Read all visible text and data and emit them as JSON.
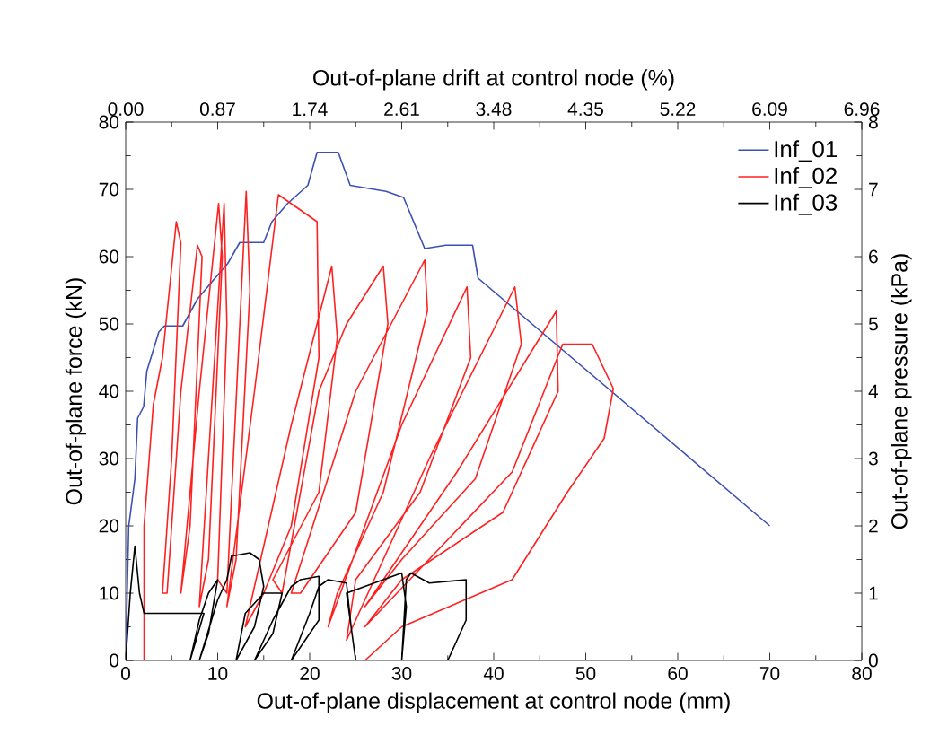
{
  "chart_data": {
    "type": "line",
    "xlabel": "Out-of-plane displacement at control node (mm)",
    "ylabel": "Out-of-plane force (kN)",
    "y2label": "Out-of-plane pressure (kPa)",
    "x2label": "Out-of-plane drift at control node (%)",
    "xlim": [
      0,
      80
    ],
    "xticks": [
      0,
      10,
      20,
      30,
      40,
      50,
      60,
      70,
      80
    ],
    "ylim": [
      0,
      80
    ],
    "yticks": [
      0,
      10,
      20,
      30,
      40,
      50,
      60,
      70,
      80
    ],
    "x2lim": [
      0,
      6.96
    ],
    "x2ticks": [
      {
        "value": 0,
        "label": "0.00"
      },
      0.87,
      1.74,
      2.61,
      3.48,
      4.35,
      5.22,
      6.09,
      6.96
    ],
    "y2lim": [
      0,
      8
    ],
    "y2ticks": [
      0,
      1,
      2,
      3,
      4,
      5,
      6,
      7,
      8
    ],
    "legend": "top right",
    "marker": "none",
    "line_style": "solid",
    "series": [
      {
        "name": "Inf_01",
        "color": "#3c50b4",
        "x": [
          0,
          0.33,
          1.0,
          1.3,
          1.95,
          2.3,
          3.6,
          4.2,
          6.2,
          7.8,
          9.4,
          11.1,
          12.4,
          15,
          15.9,
          17.6,
          19.8,
          20.8,
          23.1,
          24.4,
          28.3,
          30.2,
          32.5,
          34.8,
          37.7,
          38.3,
          70
        ],
        "values": [
          0,
          19.9,
          27,
          36,
          37.7,
          43,
          48.8,
          49.7,
          49.7,
          53.7,
          56.3,
          59,
          62.1,
          62.1,
          65.2,
          67.9,
          70.6,
          75.5,
          75.5,
          70.6,
          69.7,
          68.8,
          61.2,
          61.7,
          61.7,
          56.8,
          20
        ]
      },
      {
        "name": "Inf_02",
        "color": "#ff2020",
        "x": [
          2,
          2,
          3,
          4,
          5.5,
          6,
          5,
          4,
          4.5,
          6,
          7.8,
          8.3,
          7,
          6,
          8,
          10.1,
          10.5,
          9,
          8,
          10.7,
          11,
          10,
          11,
          13.1,
          13.5,
          12,
          11,
          14,
          16.6,
          20.8,
          21,
          18,
          15,
          13,
          18,
          22.4,
          23,
          21,
          16,
          17,
          21,
          24,
          28,
          28.5,
          25,
          19,
          18,
          25,
          32.5,
          32.8,
          28,
          23,
          22,
          30,
          37.1,
          37.5,
          32,
          25,
          24,
          33,
          42.3,
          43,
          38,
          30,
          26,
          36,
          46.8,
          47,
          41,
          30,
          26,
          42,
          47.5,
          50.7,
          53,
          52,
          48,
          42,
          30,
          26
        ],
        "values": [
          0,
          20,
          38,
          45,
          65.2,
          62,
          30,
          10,
          10,
          40,
          61.7,
          60,
          20,
          10,
          40,
          67.9,
          60,
          15,
          8,
          67.9,
          50,
          12,
          10,
          69.7,
          55,
          15,
          8,
          40,
          69.2,
          65.2,
          45,
          20,
          10,
          5,
          35,
          58.6,
          48,
          25,
          12,
          10,
          40,
          50,
          58.6,
          50,
          22,
          10,
          10,
          40,
          59.5,
          52,
          25,
          10,
          5,
          35,
          55.5,
          45,
          25,
          12,
          3,
          30,
          55.5,
          47,
          27,
          15,
          8,
          28,
          51.9,
          40,
          22,
          12,
          5,
          28,
          47,
          47,
          40.4,
          33,
          25,
          12,
          5,
          0
        ]
      },
      {
        "name": "Inf_03",
        "color": "#000000",
        "x": [
          0,
          0.5,
          1,
          1.5,
          2,
          5,
          8.5,
          7,
          8,
          9,
          10,
          9,
          8,
          10,
          11,
          11.5,
          13.5,
          14.5,
          15,
          14,
          12,
          13,
          15,
          17,
          16,
          14,
          16,
          18,
          19,
          21,
          21,
          18,
          20,
          21,
          22,
          24,
          24.5,
          25,
          24,
          26,
          29,
          30,
          30.5,
          30,
          30.5,
          31,
          33,
          37,
          37,
          35
        ],
        "values": [
          0,
          10,
          17,
          10,
          7,
          7,
          7,
          0,
          6,
          10,
          12,
          4,
          0,
          9,
          12,
          15.5,
          16,
          15,
          11,
          5,
          0,
          7,
          10,
          10,
          4,
          0,
          6,
          11,
          12,
          12.5,
          6,
          0,
          7,
          11,
          12,
          11.5,
          5,
          0,
          10,
          11,
          12.5,
          13,
          8,
          0,
          12,
          13,
          11.5,
          12,
          6,
          0
        ]
      }
    ]
  }
}
